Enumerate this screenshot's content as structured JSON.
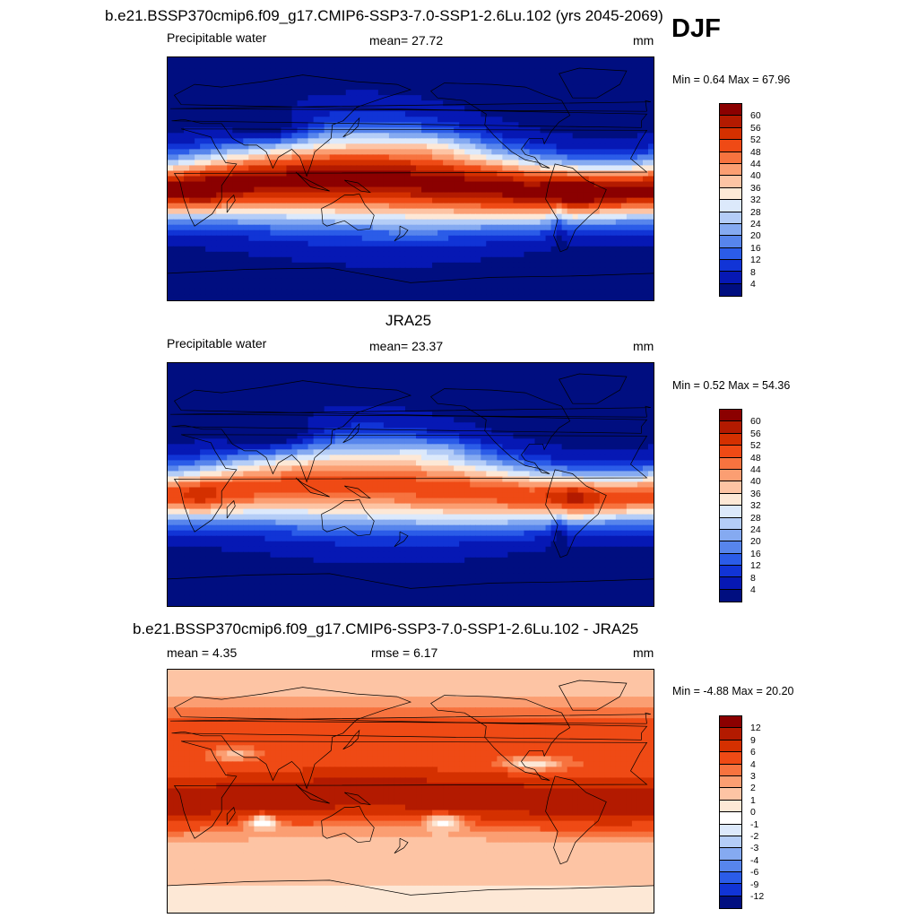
{
  "season": "DJF",
  "panels": [
    {
      "id": "model",
      "title": "b.e21.BSSP370cmip6.f09_g17.CMIP6-SSP3-7.0-SSP1-2.6Lu.102 (yrs 2045-2069)",
      "left": "Precipitable water",
      "center": "mean=  27.72",
      "right": "mm",
      "minmax": "Min =   0.64 Max =  67.96",
      "palette": "pw",
      "field": "model"
    },
    {
      "id": "obs",
      "title": "JRA25",
      "left": "Precipitable water",
      "center": "mean=  23.37",
      "right": "mm",
      "minmax": "Min =   0.52 Max =  54.36",
      "palette": "pw",
      "field": "obs"
    },
    {
      "id": "diff",
      "title": "b.e21.BSSP370cmip6.f09_g17.CMIP6-SSP3-7.0-SSP1-2.6Lu.102 - JRA25",
      "left": "mean =   4.35",
      "center": "rmse =   6.17",
      "right": "mm",
      "minmax": "Min =  -4.88 Max =  20.20",
      "palette": "diff",
      "field": "diff"
    }
  ],
  "colorbars": {
    "pw": {
      "levels": [
        "60",
        "56",
        "52",
        "48",
        "44",
        "40",
        "36",
        "32",
        "28",
        "24",
        "20",
        "16",
        "12",
        "8",
        "4"
      ],
      "colors": [
        "#8b0000",
        "#b31a00",
        "#d43000",
        "#ef4a15",
        "#f7733f",
        "#fb9e72",
        "#fdc4a4",
        "#fde8d6",
        "#dce9fb",
        "#b4cdf7",
        "#85aaf1",
        "#5785ec",
        "#2b5ce8",
        "#1134d6",
        "#0618b4",
        "#000e80"
      ]
    },
    "diff": {
      "levels": [
        "12",
        "9",
        "6",
        "4",
        "3",
        "2",
        "1",
        "0",
        "-1",
        "-2",
        "-3",
        "-4",
        "-6",
        "-9",
        "-12"
      ],
      "colors": [
        "#8b0000",
        "#b31a00",
        "#d43000",
        "#ef4a15",
        "#f7733f",
        "#fb9e72",
        "#fdc4a4",
        "#fde8d6",
        "#ffffff",
        "#dce9fb",
        "#b4cdf7",
        "#85aaf1",
        "#5785ec",
        "#2b5ce8",
        "#1134d6",
        "#000e80"
      ]
    }
  }
}
